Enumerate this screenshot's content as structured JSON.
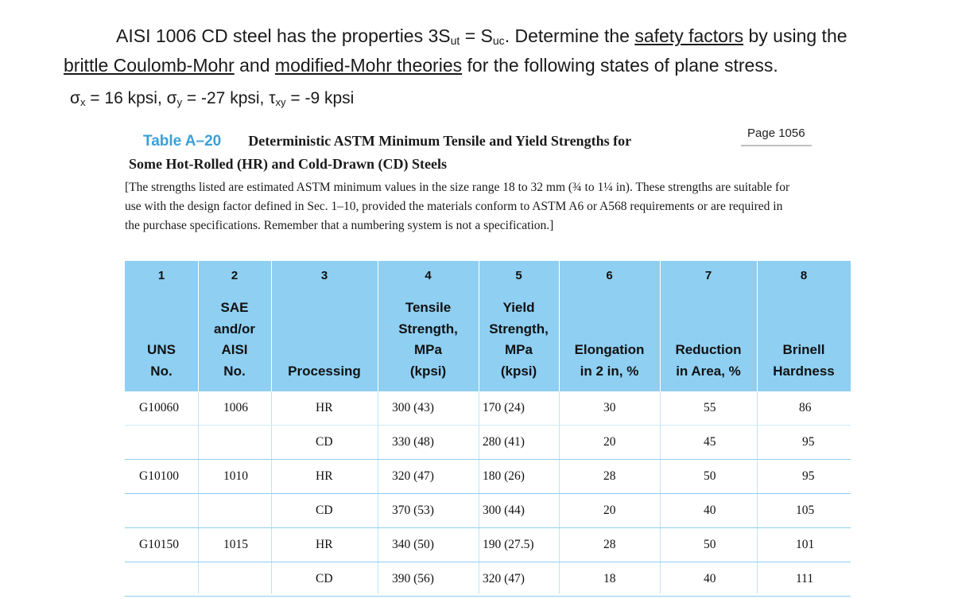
{
  "problem": {
    "line1_pre": "AISI 1006 CD steel has the properties 3S",
    "sub_ut": "ut",
    "eq": " = S",
    "sub_uc": "uc",
    "line1_mid": ". Determine the ",
    "link_safety": "safety factors",
    "line1_post": " by using the",
    "link_coulomb": "brittle Coulomb-Mohr",
    "and": " and ",
    "link_modified": "modified-Mohr theories",
    "line2_post": " for the following states of plane stress."
  },
  "stress": {
    "sx_sym": "σ",
    "sx_sub": "x",
    "sx_val": " = 16 kpsi, ",
    "sy_sym": "σ",
    "sy_sub": "y",
    "sy_val": " = -27 kpsi, ",
    "txy_sym": "τ",
    "txy_sub": "xy",
    "txy_val": " = -9 kpsi"
  },
  "table_title": {
    "label": "Table A–20",
    "title_line1": "Deterministic ASTM Minimum Tensile and Yield Strengths for",
    "title_line2": "Some Hot-Rolled (HR) and Cold-Drawn (CD) Steels"
  },
  "page_ref": "Page 1056",
  "note": "[The strengths listed are estimated ASTM minimum values in the size range 18 to 32 mm (¾ to 1¼ in). These strengths are suitable for use with the design factor defined in Sec. 1–10, provided the materials conform to ASTM A6 or A568 requirements or are required in the purchase specifications. Remember that a numbering system is not a specification.]",
  "columns": {
    "numbers": [
      "1",
      "2",
      "3",
      "4",
      "5",
      "6",
      "7",
      "8"
    ],
    "c1": [
      "UNS",
      "No."
    ],
    "c2": [
      "SAE",
      "and/or",
      "AISI",
      "No."
    ],
    "c3": [
      "Processing"
    ],
    "c4": [
      "Tensile",
      "Strength,",
      "MPa",
      "(kpsi)"
    ],
    "c5": [
      "Yield",
      "Strength,",
      "MPa",
      "(kpsi)"
    ],
    "c6": [
      "Elongation",
      "in 2 in, %"
    ],
    "c7": [
      "Reduction",
      "in Area, %"
    ],
    "c8": [
      "Brinell",
      "Hardness"
    ]
  },
  "rows": [
    {
      "uns": "G10060",
      "sae": "1006",
      "proc": "HR",
      "tensile": "300 (43)",
      "yield": "170 (24)",
      "elong": "30",
      "red": "55",
      "hb": "86"
    },
    {
      "uns": "",
      "sae": "",
      "proc": "CD",
      "tensile": "330 (48)",
      "yield": "280 (41)",
      "elong": "20",
      "red": "45",
      "hb": "95"
    },
    {
      "uns": "G10100",
      "sae": "1010",
      "proc": "HR",
      "tensile": "320 (47)",
      "yield": "180 (26)",
      "elong": "28",
      "red": "50",
      "hb": "95"
    },
    {
      "uns": "",
      "sae": "",
      "proc": "CD",
      "tensile": "370 (53)",
      "yield": "300 (44)",
      "elong": "20",
      "red": "40",
      "hb": "105"
    },
    {
      "uns": "G10150",
      "sae": "1015",
      "proc": "HR",
      "tensile": "340 (50)",
      "yield": "190 (27.5)",
      "elong": "28",
      "red": "50",
      "hb": "101"
    },
    {
      "uns": "",
      "sae": "",
      "proc": "CD",
      "tensile": "390 (56)",
      "yield": "320 (47)",
      "elong": "18",
      "red": "40",
      "hb": "111"
    }
  ]
}
